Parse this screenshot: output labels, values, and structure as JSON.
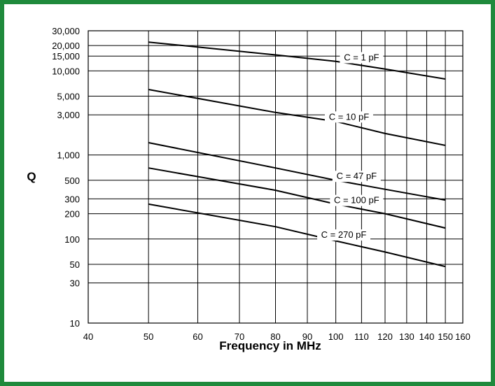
{
  "theme": {
    "border_color": "#1f8a3c",
    "line_color": "#000000"
  },
  "chart_data": {
    "type": "line",
    "xlabel": "Frequency in MHz",
    "ylabel": "Q",
    "x_scale": "log",
    "y_scale": "log",
    "xlim": [
      40,
      160
    ],
    "ylim": [
      10,
      30000
    ],
    "grid": true,
    "x_ticks": [
      40,
      50,
      60,
      70,
      80,
      90,
      100,
      110,
      120,
      130,
      140,
      150,
      160
    ],
    "x_tick_labels": [
      "40",
      "50",
      "60",
      "70",
      "80",
      "90",
      "100",
      "110",
      "120",
      "130",
      "140",
      "150",
      "160"
    ],
    "y_ticks": [
      10,
      30,
      50,
      100,
      200,
      300,
      500,
      1000,
      3000,
      5000,
      10000,
      15000,
      20000,
      30000
    ],
    "y_tick_labels": [
      "10",
      "30",
      "50",
      "100",
      "200",
      "300",
      "500",
      "1,000",
      "3,000",
      "5,000",
      "10,000",
      "15,000",
      "20,000",
      "30,000"
    ],
    "series": [
      {
        "name": "C = 1 pF",
        "x": [
          50,
          80,
          100,
          120,
          150
        ],
        "y": [
          22000,
          15500,
          13000,
          10500,
          8000
        ]
      },
      {
        "name": "C = 10 pF",
        "x": [
          50,
          80,
          100,
          120,
          150
        ],
        "y": [
          6000,
          3200,
          2500,
          1800,
          1300
        ]
      },
      {
        "name": "C = 47 pF",
        "x": [
          50,
          80,
          100,
          120,
          150
        ],
        "y": [
          1400,
          700,
          500,
          390,
          290
        ]
      },
      {
        "name": "C = 100 pF",
        "x": [
          50,
          80,
          100,
          120,
          150
        ],
        "y": [
          700,
          380,
          260,
          200,
          135
        ]
      },
      {
        "name": "C = 270 pF",
        "x": [
          50,
          80,
          100,
          120,
          150
        ],
        "y": [
          260,
          140,
          95,
          70,
          47
        ]
      }
    ]
  }
}
